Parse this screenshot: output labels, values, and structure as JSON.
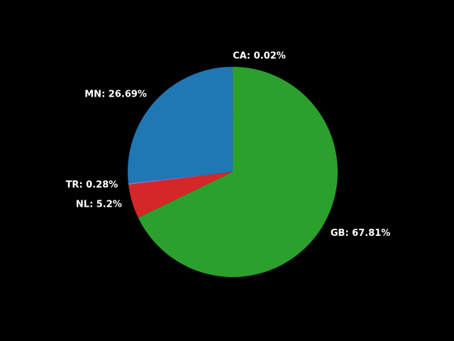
{
  "chart_data": {
    "type": "pie",
    "title": "",
    "start_angle_deg": 90,
    "slices": [
      {
        "label": "MN",
        "value": 26.69,
        "text": "MN: 26.69%",
        "color": "#1f77b4"
      },
      {
        "label": "TR",
        "value": 0.28,
        "text": "TR: 0.28%",
        "color": "#9467bd"
      },
      {
        "label": "NL",
        "value": 5.2,
        "text": "NL: 5.2%",
        "color": "#d62728"
      },
      {
        "label": "GB",
        "value": 67.81,
        "text": "GB: 67.81%",
        "color": "#2ca02c"
      },
      {
        "label": "CA",
        "value": 0.02,
        "text": "CA: 0.02%",
        "color": "#ff7f0e"
      }
    ]
  }
}
